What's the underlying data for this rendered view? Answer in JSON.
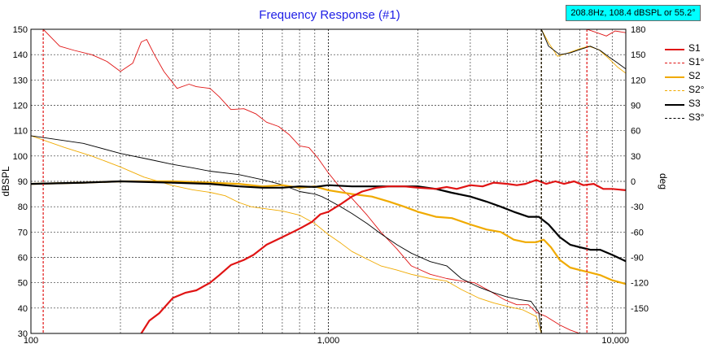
{
  "readout": "208.8Hz, 108.4 dBSPL or 55.2°",
  "colors": {
    "title": "#1e1ee6",
    "s1": "#e01414",
    "s2": "#f0aa00",
    "s3": "#000000",
    "grid": "#000000",
    "readout_bg": "#00ffff"
  },
  "chart_data": {
    "type": "line",
    "title": "Frequency Response (#1)",
    "xlabel": "",
    "ylabel": "dBSPL",
    "y2label": "deg",
    "xscale": "log",
    "xlim": [
      100,
      10000
    ],
    "ylim": [
      30,
      150
    ],
    "y2lim": [
      -180,
      180
    ],
    "x_tick_labels": [
      "100",
      "1,000",
      "10,000"
    ],
    "y_tick_labels": [
      "30",
      "40",
      "50",
      "60",
      "70",
      "80",
      "90",
      "100",
      "110",
      "120",
      "130",
      "140",
      "150"
    ],
    "y2_tick_labels": [
      "-150",
      "-120",
      "-90",
      "-60",
      "-30",
      "0",
      "30",
      "60",
      "90",
      "120",
      "150",
      "180"
    ],
    "grid": true,
    "legend_position": "right",
    "series": [
      {
        "name": "S1",
        "axis": "left",
        "style": "solid",
        "color": "#e01414",
        "points": [
          [
            232,
            29
          ],
          [
            250,
            35
          ],
          [
            270,
            38
          ],
          [
            300,
            44
          ],
          [
            330,
            46
          ],
          [
            360,
            47
          ],
          [
            400,
            50
          ],
          [
            430,
            53
          ],
          [
            470,
            57
          ],
          [
            520,
            59
          ],
          [
            560,
            61
          ],
          [
            620,
            65
          ],
          [
            700,
            68
          ],
          [
            760,
            70
          ],
          [
            820,
            72
          ],
          [
            880,
            74
          ],
          [
            940,
            77
          ],
          [
            1000,
            78
          ],
          [
            1100,
            81
          ],
          [
            1200,
            84
          ],
          [
            1300,
            86
          ],
          [
            1450,
            87.5
          ],
          [
            1600,
            88
          ],
          [
            1800,
            88
          ],
          [
            2000,
            87.5
          ],
          [
            2300,
            87
          ],
          [
            2500,
            87.8
          ],
          [
            2700,
            87
          ],
          [
            3000,
            88.5
          ],
          [
            3300,
            88
          ],
          [
            3600,
            89.5
          ],
          [
            4000,
            89
          ],
          [
            4300,
            88.5
          ],
          [
            4600,
            89
          ],
          [
            5000,
            90.5
          ],
          [
            5400,
            89
          ],
          [
            5800,
            90
          ],
          [
            6200,
            89
          ],
          [
            6700,
            90
          ],
          [
            7200,
            88.5
          ],
          [
            7800,
            89
          ],
          [
            8400,
            87
          ],
          [
            9000,
            87
          ],
          [
            10000,
            86.5
          ]
        ]
      },
      {
        "name": "S1°",
        "axis": "right",
        "style": "dashed",
        "color": "#e01414",
        "points": [
          [
            110,
            -180
          ],
          [
            110,
            180
          ],
          [
            125,
            160
          ],
          [
            140,
            155
          ],
          [
            160,
            150
          ],
          [
            180,
            142
          ],
          [
            200,
            130
          ],
          [
            220,
            140
          ],
          [
            235,
            165
          ],
          [
            245,
            168
          ],
          [
            260,
            150
          ],
          [
            280,
            130
          ],
          [
            310,
            110
          ],
          [
            340,
            115
          ],
          [
            360,
            112
          ],
          [
            400,
            110
          ],
          [
            430,
            100
          ],
          [
            470,
            85
          ],
          [
            520,
            86
          ],
          [
            570,
            80
          ],
          [
            620,
            70
          ],
          [
            680,
            65
          ],
          [
            740,
            55
          ],
          [
            800,
            42
          ],
          [
            860,
            40
          ],
          [
            920,
            28
          ],
          [
            1000,
            10
          ],
          [
            1100,
            -8
          ],
          [
            1200,
            -20
          ],
          [
            1350,
            -40
          ],
          [
            1500,
            -60
          ],
          [
            1700,
            -80
          ],
          [
            1900,
            -100
          ],
          [
            2200,
            -110
          ],
          [
            2500,
            -115
          ],
          [
            2800,
            -118
          ],
          [
            3100,
            -120
          ],
          [
            3500,
            -130
          ],
          [
            3900,
            -140
          ],
          [
            4300,
            -146
          ],
          [
            4700,
            -146
          ],
          [
            5000,
            -155
          ],
          [
            5400,
            -160
          ],
          [
            6000,
            -170
          ],
          [
            6500,
            -176
          ],
          [
            7000,
            -180
          ],
          [
            7400,
            -180
          ],
          [
            7400,
            180
          ],
          [
            8000,
            176
          ],
          [
            8600,
            172
          ],
          [
            9200,
            178
          ],
          [
            10000,
            176
          ]
        ]
      },
      {
        "name": "S2",
        "axis": "left",
        "style": "solid",
        "color": "#f0aa00",
        "points": [
          [
            100,
            89
          ],
          [
            150,
            89.5
          ],
          [
            200,
            90
          ],
          [
            300,
            90
          ],
          [
            400,
            89.5
          ],
          [
            500,
            89
          ],
          [
            600,
            88
          ],
          [
            700,
            88.5
          ],
          [
            800,
            87.5
          ],
          [
            900,
            88
          ],
          [
            1000,
            86.5
          ],
          [
            1200,
            85
          ],
          [
            1400,
            84
          ],
          [
            1600,
            82
          ],
          [
            1800,
            80
          ],
          [
            2000,
            78
          ],
          [
            2300,
            76
          ],
          [
            2600,
            75.5
          ],
          [
            3000,
            73
          ],
          [
            3400,
            71
          ],
          [
            3800,
            70
          ],
          [
            4200,
            67
          ],
          [
            4600,
            66
          ],
          [
            5000,
            66
          ],
          [
            5300,
            67
          ],
          [
            5600,
            64
          ],
          [
            6000,
            59
          ],
          [
            6500,
            56
          ],
          [
            7000,
            55
          ],
          [
            7600,
            54
          ],
          [
            8200,
            53
          ],
          [
            9000,
            51
          ],
          [
            10000,
            49.5
          ]
        ]
      },
      {
        "name": "S2°",
        "axis": "right",
        "style": "dashed",
        "color": "#f0aa00",
        "points": [
          [
            100,
            54
          ],
          [
            130,
            40
          ],
          [
            160,
            30
          ],
          [
            200,
            17
          ],
          [
            240,
            5
          ],
          [
            300,
            -5
          ],
          [
            350,
            -10
          ],
          [
            400,
            -13
          ],
          [
            450,
            -17
          ],
          [
            500,
            -25
          ],
          [
            550,
            -30
          ],
          [
            600,
            -32
          ],
          [
            700,
            -35
          ],
          [
            800,
            -40
          ],
          [
            900,
            -50
          ],
          [
            1000,
            -63
          ],
          [
            1100,
            -73
          ],
          [
            1200,
            -83
          ],
          [
            1350,
            -92
          ],
          [
            1500,
            -100
          ],
          [
            1700,
            -105
          ],
          [
            1900,
            -110
          ],
          [
            2200,
            -115
          ],
          [
            2500,
            -118
          ],
          [
            2800,
            -128
          ],
          [
            3200,
            -138
          ],
          [
            3600,
            -144
          ],
          [
            4000,
            -148
          ],
          [
            4500,
            -152
          ],
          [
            5000,
            -160
          ],
          [
            5200,
            -180
          ],
          [
            5200,
            180
          ],
          [
            5500,
            164
          ],
          [
            5900,
            148
          ],
          [
            6400,
            152
          ],
          [
            7000,
            157
          ],
          [
            7500,
            160
          ],
          [
            8100,
            156
          ],
          [
            8800,
            145
          ],
          [
            9400,
            135
          ],
          [
            10000,
            128
          ]
        ]
      },
      {
        "name": "S3",
        "axis": "left",
        "style": "solid",
        "color": "#000000",
        "points": [
          [
            100,
            89
          ],
          [
            150,
            89.5
          ],
          [
            200,
            90
          ],
          [
            300,
            89.5
          ],
          [
            400,
            89
          ],
          [
            500,
            88
          ],
          [
            600,
            87.5
          ],
          [
            700,
            87.5
          ],
          [
            800,
            88
          ],
          [
            900,
            87.8
          ],
          [
            1000,
            88.5
          ],
          [
            1200,
            88
          ],
          [
            1400,
            88
          ],
          [
            1700,
            88
          ],
          [
            2000,
            88
          ],
          [
            2300,
            87
          ],
          [
            2600,
            85.5
          ],
          [
            3000,
            84
          ],
          [
            3400,
            82
          ],
          [
            3800,
            80
          ],
          [
            4200,
            78
          ],
          [
            4700,
            76
          ],
          [
            5100,
            76
          ],
          [
            5500,
            73
          ],
          [
            6000,
            68
          ],
          [
            6500,
            65
          ],
          [
            7000,
            64
          ],
          [
            7600,
            63
          ],
          [
            8200,
            63
          ],
          [
            9000,
            61
          ],
          [
            10000,
            58.5
          ]
        ]
      },
      {
        "name": "S3°",
        "axis": "right",
        "style": "dashed",
        "color": "#000000",
        "points": [
          [
            100,
            54
          ],
          [
            150,
            45
          ],
          [
            200,
            33
          ],
          [
            250,
            26
          ],
          [
            300,
            20
          ],
          [
            350,
            16
          ],
          [
            400,
            12
          ],
          [
            500,
            8
          ],
          [
            600,
            2
          ],
          [
            700,
            -4
          ],
          [
            800,
            -12
          ],
          [
            860,
            -14
          ],
          [
            900,
            -15
          ],
          [
            950,
            -18
          ],
          [
            1000,
            -22
          ],
          [
            1100,
            -30
          ],
          [
            1200,
            -38
          ],
          [
            1350,
            -50
          ],
          [
            1500,
            -62
          ],
          [
            1700,
            -75
          ],
          [
            1900,
            -85
          ],
          [
            2200,
            -95
          ],
          [
            2500,
            -100
          ],
          [
            2800,
            -115
          ],
          [
            3200,
            -125
          ],
          [
            3600,
            -132
          ],
          [
            4000,
            -137
          ],
          [
            4400,
            -140
          ],
          [
            4800,
            -142
          ],
          [
            5100,
            -155
          ],
          [
            5200,
            -180
          ],
          [
            5200,
            180
          ],
          [
            5500,
            160
          ],
          [
            6000,
            150
          ],
          [
            6500,
            152
          ],
          [
            7000,
            156
          ],
          [
            7600,
            160
          ],
          [
            8200,
            155
          ],
          [
            8800,
            147
          ],
          [
            9400,
            140
          ],
          [
            10000,
            133
          ]
        ]
      }
    ]
  }
}
